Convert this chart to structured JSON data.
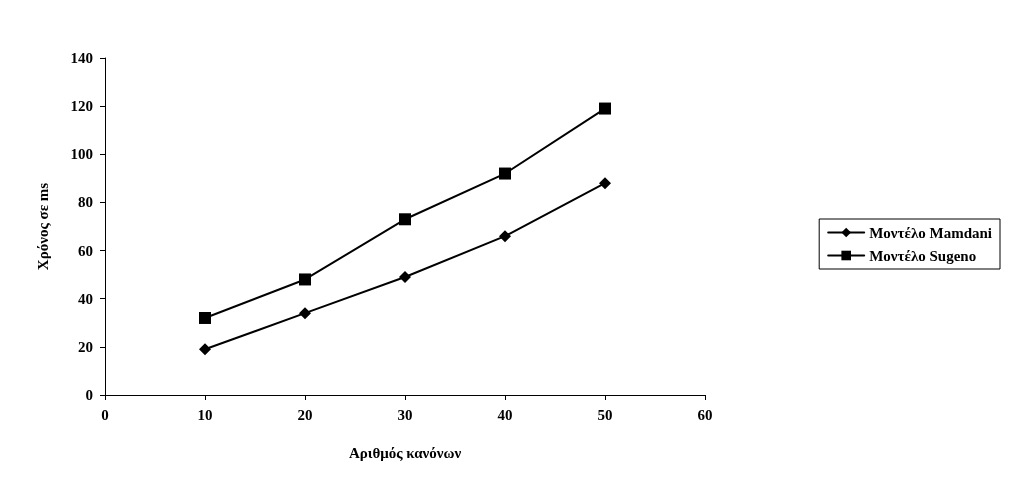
{
  "chart_data": {
    "type": "line",
    "xlabel": "Αριθμός κανόνων",
    "ylabel": "Χρόνος σε ms",
    "x": [
      10,
      20,
      30,
      40,
      50
    ],
    "series": [
      {
        "name": "Μοντέλο Mamdani",
        "color": "#000000",
        "marker": "diamond",
        "values": [
          19,
          34,
          49,
          66,
          88
        ]
      },
      {
        "name": "Μοντέλο Sugeno",
        "color": "#000000",
        "marker": "square",
        "values": [
          32,
          48,
          73,
          92,
          119
        ]
      }
    ],
    "xlim": [
      0,
      60
    ],
    "xticks": [
      0,
      10,
      20,
      30,
      40,
      50,
      60
    ],
    "ylim": [
      0,
      140
    ],
    "yticks": [
      0,
      20,
      40,
      60,
      80,
      100,
      120,
      140
    ],
    "grid": false,
    "legend": "right",
    "line_style": "solid"
  }
}
